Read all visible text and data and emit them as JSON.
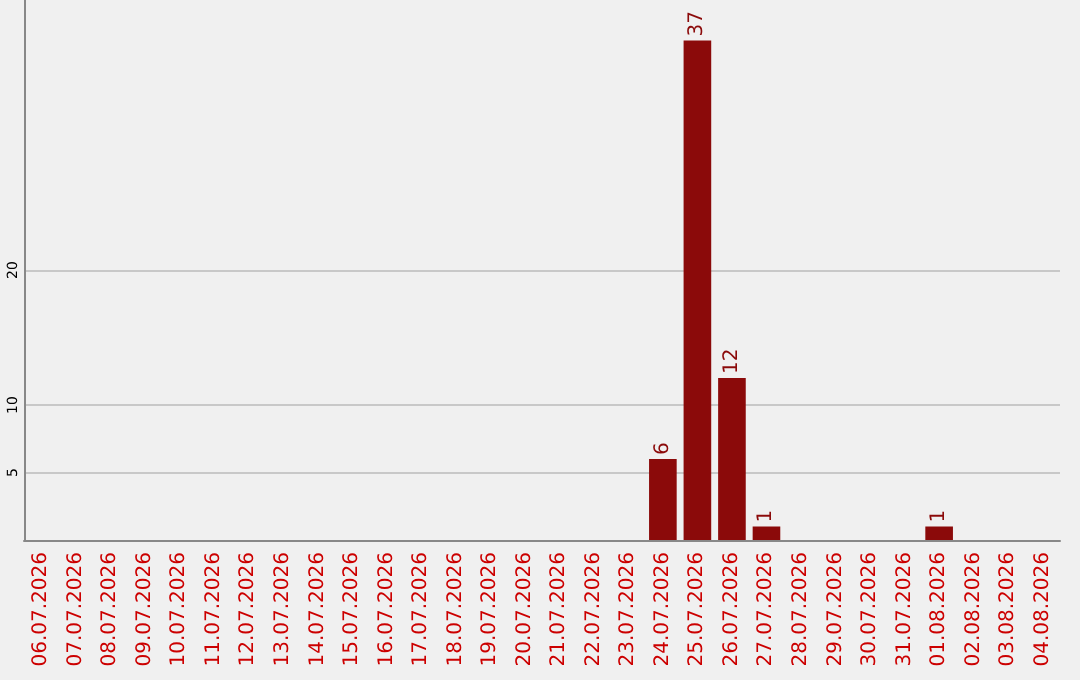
{
  "chart_data": {
    "type": "bar",
    "categories": [
      "06.07.2026",
      "07.07.2026",
      "08.07.2026",
      "09.07.2026",
      "10.07.2026",
      "11.07.2026",
      "12.07.2026",
      "13.07.2026",
      "14.07.2026",
      "15.07.2026",
      "16.07.2026",
      "17.07.2026",
      "18.07.2026",
      "19.07.2026",
      "20.07.2026",
      "21.07.2026",
      "22.07.2026",
      "23.07.2026",
      "24.07.2026",
      "25.07.2026",
      "26.07.2026",
      "27.07.2026",
      "28.07.2026",
      "29.07.2026",
      "30.07.2026",
      "31.07.2026",
      "01.08.2026",
      "02.08.2026",
      "03.08.2026",
      "04.08.2026"
    ],
    "values": [
      0,
      0,
      0,
      0,
      0,
      0,
      0,
      0,
      0,
      0,
      0,
      0,
      0,
      0,
      0,
      0,
      0,
      0,
      6,
      37,
      12,
      1,
      0,
      0,
      0,
      0,
      1,
      0,
      0,
      0
    ],
    "value_labels": [
      null,
      null,
      null,
      null,
      null,
      null,
      null,
      null,
      null,
      null,
      null,
      null,
      null,
      null,
      null,
      null,
      null,
      null,
      "6",
      "37",
      "12",
      "1",
      null,
      null,
      null,
      null,
      "1",
      null,
      null,
      null
    ],
    "color": "#8b0a0a",
    "ylim": [
      0,
      40
    ],
    "yticks": [
      5,
      10,
      20
    ],
    "grid": "y"
  }
}
